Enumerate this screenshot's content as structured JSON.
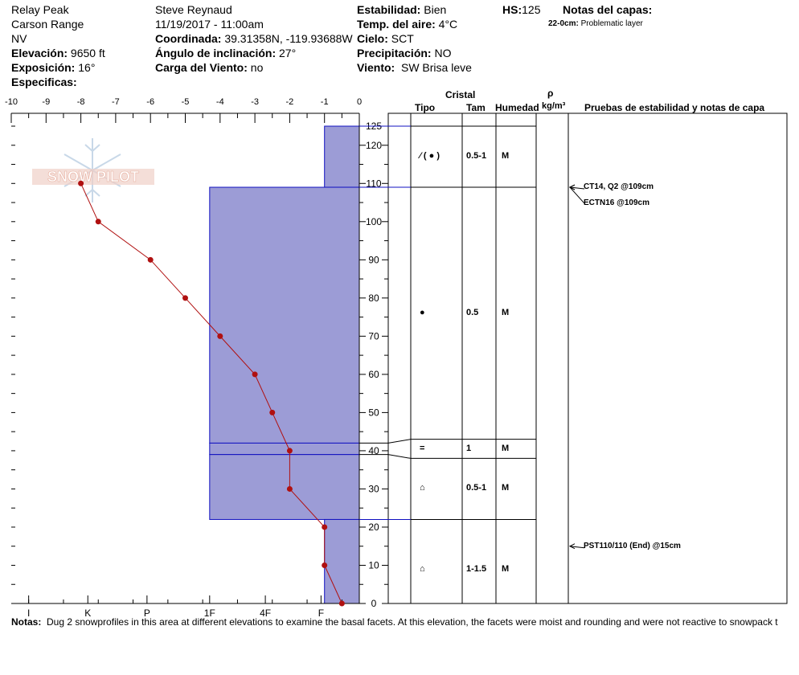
{
  "header": {
    "location": "Relay Peak",
    "range": "Carson Range",
    "state": "NV",
    "elevation_label": "Elevación:",
    "elevation_value": "9650 ft",
    "exposure_label": "Exposición:",
    "exposure_value": "16°",
    "specifics_label": "Especificas:",
    "observer": "Steve Reynaud",
    "datetime": "11/19/2017 - 11:00am",
    "coord_label": "Coordinada:",
    "coord_value": "39.31358N, -119.93688W",
    "slope_label": "Ángulo de inclinación:",
    "slope_value": "27°",
    "wind_load_label": "Carga del Viento:",
    "wind_load_value": "no",
    "stability_label": "Estabilidad:",
    "stability_value": "Bien",
    "air_temp_label": "Temp. del aire:",
    "air_temp_value": "4°C",
    "sky_label": "Cielo:",
    "sky_value": "SCT",
    "precip_label": "Precipitación:",
    "precip_value": "NO",
    "wind_label": "Viento:",
    "wind_value": "SW Brisa leve",
    "hs_label": "HS:",
    "hs_value": "125",
    "layer_notes_label": "Notas del capas:",
    "layer_note_depth": "22-0cm:",
    "layer_note_text": "Problematic layer"
  },
  "logo_text": "SNOW PILOT",
  "table_headers": {
    "cristal": "Cristal",
    "tipo": "Tipo",
    "tam": "Tam",
    "humedad": "Humedad",
    "rho": "ρ",
    "density_unit": "kg/m³",
    "tests": "Pruebas de estabilidad y notas de capa"
  },
  "layers": [
    {
      "top": 125,
      "bottom": 109,
      "hardness": -1,
      "type_symbol": "⁄ ( ● )",
      "size": "0.5-1",
      "moisture": "M"
    },
    {
      "top": 109,
      "bottom": 42,
      "hardness": -4.3,
      "type_symbol": "●",
      "size": "0.5",
      "moisture": "M"
    },
    {
      "top": 42,
      "bottom": 39,
      "hardness": -4.3,
      "type_symbol": "=",
      "size": "1",
      "moisture": "M"
    },
    {
      "top": 39,
      "bottom": 22,
      "hardness": -4.3,
      "type_symbol": "⌂",
      "size": "0.5-1",
      "moisture": "M"
    },
    {
      "top": 22,
      "bottom": 0,
      "hardness": -1,
      "type_symbol": "⌂",
      "size": "1-1.5",
      "moisture": "M"
    }
  ],
  "stability_tests": [
    {
      "height": 109,
      "text": "CT14, Q2 @109cm"
    },
    {
      "height": 109,
      "text": "ECTN16 @109cm"
    },
    {
      "height": 15,
      "text": "PST110/110 (End) @15cm"
    }
  ],
  "notes_label": "Notas:",
  "notes_text": "Dug 2 snowprofiles in this area at different elevations to examine the basal facets.  At this elevation, the facets were moist and rounding and were not reactive to snowpack t",
  "chart_data": {
    "type": "line",
    "title": "",
    "x_top_ticks": [
      "-10",
      "-9",
      "-8",
      "-7",
      "-6",
      "-5",
      "-4",
      "-3",
      "-2",
      "-1",
      "0"
    ],
    "x_bottom_ticks": [
      "I",
      "K",
      "P",
      "1F",
      "4F",
      "F"
    ],
    "xlim": [
      -10,
      0
    ],
    "ylim": [
      0,
      125
    ],
    "y_ticks": [
      "0",
      "10",
      "20",
      "30",
      "40",
      "50",
      "60",
      "70",
      "80",
      "90",
      "100",
      "110",
      "120",
      "125"
    ],
    "series": [
      {
        "x": [
          -0.5,
          -1,
          -1,
          -2,
          -2,
          -2.5,
          -3,
          -4,
          -5,
          -6,
          -7.5,
          -8
        ],
        "y": [
          0,
          10,
          20,
          30,
          40,
          50,
          60,
          70,
          80,
          90,
          100,
          110
        ]
      }
    ],
    "colors": {
      "hardness_fill": "#9c9cd6",
      "layer_line": "#1010c0",
      "temp_line": "#b01010"
    }
  }
}
